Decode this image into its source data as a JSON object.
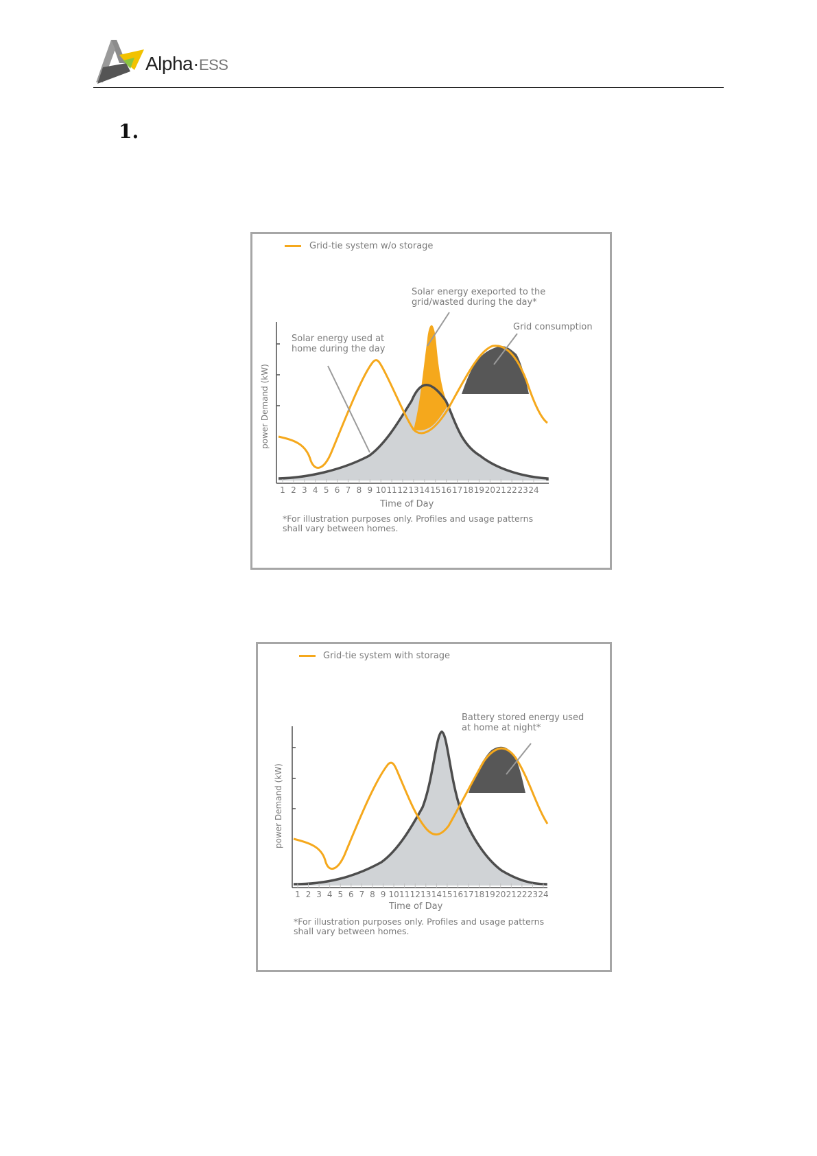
{
  "header": {
    "logo_text_main": "Alpha",
    "logo_text_dot": "·",
    "logo_text_suffix": "ESS"
  },
  "section": {
    "number": "1."
  },
  "figure1": {
    "legend": "Grid-tie system w/o storage",
    "annotation_exported": [
      "Solar energy exeported to the",
      "grid/wasted during the day*"
    ],
    "annotation_grid": "Grid consumption",
    "annotation_used": [
      "Solar energy used at",
      "home during the day"
    ],
    "ylabel": "power Demand (kW)",
    "xlabel": "Time of Day",
    "footnote": [
      "*For illustration purposes only. Profiles and usage patterns",
      "shall vary between homes."
    ]
  },
  "figure2": {
    "legend": "Grid-tie system with storage",
    "annotation_battery": [
      "Battery stored energy used",
      "at home at night*"
    ],
    "ylabel": "power Demand (kW)",
    "xlabel": "Time of Day",
    "footnote": [
      "*For illustration purposes only. Profiles and usage patterns",
      "shall vary between homes."
    ]
  },
  "chart_data": [
    {
      "type": "line",
      "title": "Grid-tie system w/o storage",
      "xlabel": "Time of Day",
      "ylabel": "power Demand (kW)",
      "x": [
        1,
        2,
        3,
        4,
        5,
        6,
        7,
        8,
        9,
        10,
        11,
        12,
        13,
        14,
        15,
        16,
        17,
        18,
        19,
        20,
        21,
        22,
        23,
        24
      ],
      "tick_labels": [
        "1",
        "2",
        "3",
        "4",
        "5",
        "6",
        "7",
        "8",
        "9",
        "10",
        "11",
        "12",
        "13",
        "14",
        "15",
        "16",
        "17",
        "18",
        "19",
        "20",
        "21",
        "22",
        "23",
        "24"
      ],
      "series": [
        {
          "name": "Grid-tie system w/o storage",
          "color": "#F5A81C"
        }
      ],
      "shaded_regions": [
        "Solar energy used at home during the day",
        "Solar energy exeported to the grid/wasted during the day*",
        "Grid consumption"
      ],
      "colors": {
        "demand": "#F5A81C",
        "solar": "#4d4d4d",
        "solar_fill": "#d0d3d6",
        "exported_fill": "#F5A81C",
        "grid_fill": "#575757"
      }
    },
    {
      "type": "line",
      "title": "Grid-tie system with storage",
      "xlabel": "Time of Day",
      "ylabel": "power Demand (kW)",
      "x": [
        1,
        2,
        3,
        4,
        5,
        6,
        7,
        8,
        9,
        10,
        11,
        12,
        13,
        14,
        15,
        16,
        17,
        18,
        19,
        20,
        21,
        22,
        23,
        24
      ],
      "tick_labels": [
        "1",
        "2",
        "3",
        "4",
        "5",
        "6",
        "7",
        "8",
        "9",
        "10",
        "11",
        "12",
        "13",
        "14",
        "15",
        "16",
        "17",
        "18",
        "19",
        "20",
        "21",
        "22",
        "23",
        "24"
      ],
      "series": [
        {
          "name": "Grid-tie system with storage",
          "color": "#F5A81C"
        }
      ],
      "shaded_regions": [
        "Battery stored energy used at home at night*"
      ],
      "colors": {
        "demand": "#F5A81C",
        "solar": "#4d4d4d",
        "solar_fill": "#d0d3d6",
        "battery_fill": "#575757"
      }
    }
  ]
}
